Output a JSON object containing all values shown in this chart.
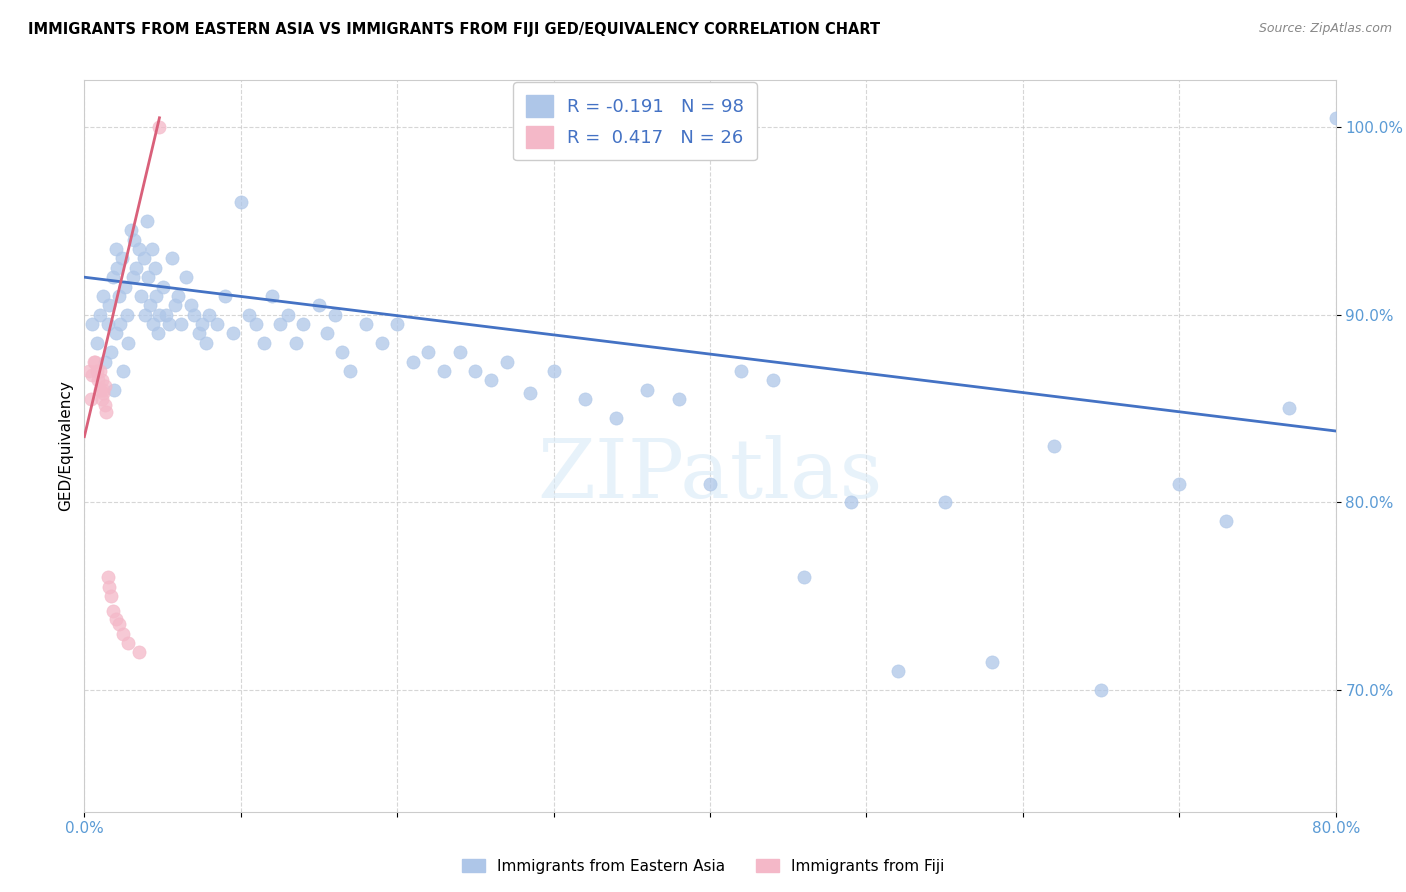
{
  "title": "IMMIGRANTS FROM EASTERN ASIA VS IMMIGRANTS FROM FIJI GED/EQUIVALENCY CORRELATION CHART",
  "source": "Source: ZipAtlas.com",
  "ylabel": "GED/Equivalency",
  "legend_label1": "Immigrants from Eastern Asia",
  "legend_label2": "Immigrants from Fiji",
  "R1": -0.191,
  "N1": 98,
  "R2": 0.417,
  "N2": 26,
  "color1": "#aec6e8",
  "color2": "#f4b8c8",
  "trendline_color1": "#4472c4",
  "trendline_color2": "#d9607a",
  "watermark_text": "ZIPatlas",
  "xlim": [
    0.0,
    0.8
  ],
  "ylim": [
    0.635,
    1.025
  ],
  "xticks": [
    0.0,
    0.1,
    0.2,
    0.3,
    0.4,
    0.5,
    0.6,
    0.7,
    0.8
  ],
  "xticklabels": [
    "0.0%",
    "",
    "",
    "",
    "",
    "",
    "",
    "",
    "80.0%"
  ],
  "yticks": [
    0.7,
    0.8,
    0.9,
    1.0
  ],
  "yticklabels": [
    "70.0%",
    "80.0%",
    "90.0%",
    "100.0%"
  ],
  "blue_trendline_x": [
    0.0,
    0.8
  ],
  "blue_trendline_y": [
    0.92,
    0.838
  ],
  "pink_trendline_x": [
    0.0,
    0.048
  ],
  "pink_trendline_y": [
    0.835,
    1.005
  ],
  "blue_x": [
    0.005,
    0.008,
    0.01,
    0.012,
    0.013,
    0.015,
    0.016,
    0.017,
    0.018,
    0.019,
    0.02,
    0.02,
    0.021,
    0.022,
    0.023,
    0.024,
    0.025,
    0.026,
    0.027,
    0.028,
    0.03,
    0.031,
    0.032,
    0.033,
    0.035,
    0.036,
    0.038,
    0.039,
    0.04,
    0.041,
    0.042,
    0.043,
    0.044,
    0.045,
    0.046,
    0.047,
    0.048,
    0.05,
    0.052,
    0.054,
    0.056,
    0.058,
    0.06,
    0.062,
    0.065,
    0.068,
    0.07,
    0.073,
    0.075,
    0.078,
    0.08,
    0.085,
    0.09,
    0.095,
    0.1,
    0.105,
    0.11,
    0.115,
    0.12,
    0.125,
    0.13,
    0.135,
    0.14,
    0.15,
    0.155,
    0.16,
    0.165,
    0.17,
    0.18,
    0.19,
    0.2,
    0.21,
    0.22,
    0.23,
    0.24,
    0.25,
    0.26,
    0.27,
    0.285,
    0.3,
    0.32,
    0.34,
    0.36,
    0.38,
    0.4,
    0.42,
    0.44,
    0.46,
    0.49,
    0.52,
    0.55,
    0.58,
    0.62,
    0.65,
    0.7,
    0.73,
    0.77,
    0.8
  ],
  "blue_y": [
    0.895,
    0.885,
    0.9,
    0.91,
    0.875,
    0.895,
    0.905,
    0.88,
    0.92,
    0.86,
    0.935,
    0.89,
    0.925,
    0.91,
    0.895,
    0.93,
    0.87,
    0.915,
    0.9,
    0.885,
    0.945,
    0.92,
    0.94,
    0.925,
    0.935,
    0.91,
    0.93,
    0.9,
    0.95,
    0.92,
    0.905,
    0.935,
    0.895,
    0.925,
    0.91,
    0.89,
    0.9,
    0.915,
    0.9,
    0.895,
    0.93,
    0.905,
    0.91,
    0.895,
    0.92,
    0.905,
    0.9,
    0.89,
    0.895,
    0.885,
    0.9,
    0.895,
    0.91,
    0.89,
    0.96,
    0.9,
    0.895,
    0.885,
    0.91,
    0.895,
    0.9,
    0.885,
    0.895,
    0.905,
    0.89,
    0.9,
    0.88,
    0.87,
    0.895,
    0.885,
    0.895,
    0.875,
    0.88,
    0.87,
    0.88,
    0.87,
    0.865,
    0.875,
    0.858,
    0.87,
    0.855,
    0.845,
    0.86,
    0.855,
    0.81,
    0.87,
    0.865,
    0.76,
    0.8,
    0.71,
    0.8,
    0.715,
    0.83,
    0.7,
    0.81,
    0.79,
    0.85,
    1.005
  ],
  "pink_x": [
    0.003,
    0.004,
    0.005,
    0.006,
    0.007,
    0.008,
    0.009,
    0.01,
    0.01,
    0.011,
    0.011,
    0.012,
    0.012,
    0.013,
    0.013,
    0.014,
    0.015,
    0.016,
    0.017,
    0.018,
    0.02,
    0.022,
    0.025,
    0.028,
    0.035,
    0.048
  ],
  "pink_y": [
    0.87,
    0.855,
    0.868,
    0.875,
    0.875,
    0.87,
    0.865,
    0.86,
    0.87,
    0.855,
    0.865,
    0.858,
    0.86,
    0.852,
    0.862,
    0.848,
    0.76,
    0.755,
    0.75,
    0.742,
    0.738,
    0.735,
    0.73,
    0.725,
    0.72,
    1.0
  ]
}
